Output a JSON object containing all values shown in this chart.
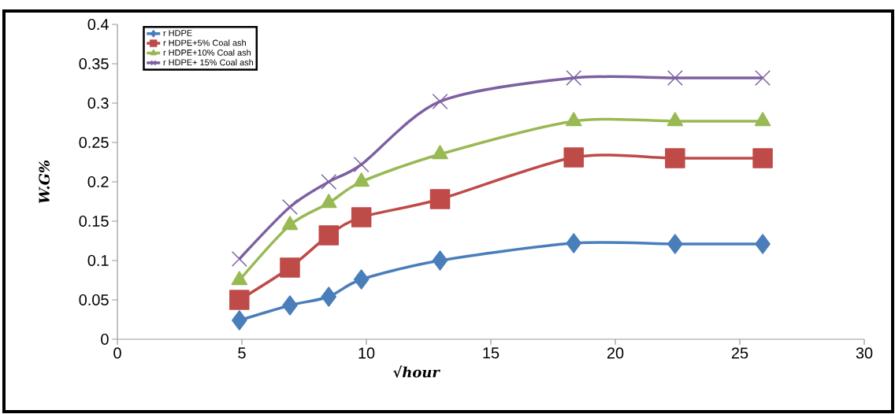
{
  "chart_data": {
    "type": "line",
    "xlabel": "√hour",
    "ylabel": "W.G%",
    "xlim": [
      0,
      30
    ],
    "xticks": [
      0,
      5,
      10,
      15,
      20,
      25,
      30
    ],
    "ylim": [
      0,
      0.4
    ],
    "yticks": [
      0,
      0.05,
      0.1,
      0.15,
      0.2,
      0.25,
      0.3,
      0.35,
      0.4
    ],
    "x": [
      4.9,
      6.93,
      8.49,
      9.8,
      12.96,
      18.33,
      22.4,
      25.92
    ],
    "grid": false,
    "legend": "top left",
    "line_style": "solid",
    "series": [
      {
        "name": "r HDPE",
        "color": "#4a7ebb",
        "marker": "diamond",
        "values": [
          0.024,
          0.043,
          0.054,
          0.076,
          0.1,
          0.122,
          0.121,
          0.121
        ]
      },
      {
        "name": "r HDPE+5% Coal ash",
        "color": "#be4b48",
        "marker": "square",
        "values": [
          0.05,
          0.091,
          0.132,
          0.155,
          0.178,
          0.231,
          0.23,
          0.23
        ]
      },
      {
        "name": "r HDPE+10% Coal ash",
        "color": "#98b954",
        "marker": "triangle",
        "values": [
          0.075,
          0.145,
          0.173,
          0.2,
          0.235,
          0.277,
          0.277,
          0.277
        ]
      },
      {
        "name": "r HDPE+ 15% Coal ash",
        "color": "#7d60a0",
        "marker": "cross",
        "values": [
          0.102,
          0.168,
          0.2,
          0.222,
          0.302,
          0.332,
          0.332,
          0.332
        ]
      }
    ]
  }
}
